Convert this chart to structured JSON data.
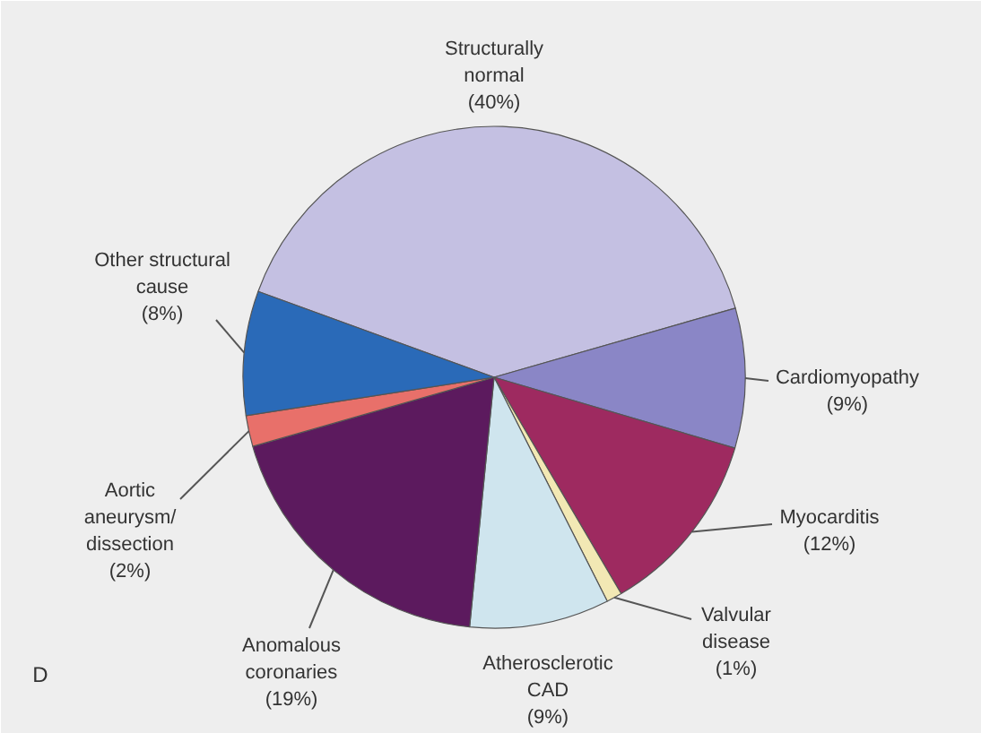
{
  "chart_data": {
    "type": "pie",
    "categories": [
      "Structurally normal",
      "Cardiomyopathy",
      "Myocarditis",
      "Valvular disease",
      "Atherosclerotic CAD",
      "Anomalous coronaries",
      "Aortic aneurysm/ dissection",
      "Other structural cause"
    ],
    "values": [
      40,
      9,
      12,
      1,
      9,
      19,
      2,
      8
    ],
    "colors": [
      "#c4c0e2",
      "#8a86c6",
      "#9e2a60",
      "#f2e8b4",
      "#cfe5ee",
      "#5c1a5e",
      "#e8706a",
      "#2a6ab8"
    ],
    "value_labels": [
      "(40%)",
      "(9%)",
      "(12%)",
      "(1%)",
      "(9%)",
      "(19%)",
      "(2%)",
      "(8%)"
    ],
    "annotations": [
      "D"
    ]
  }
}
